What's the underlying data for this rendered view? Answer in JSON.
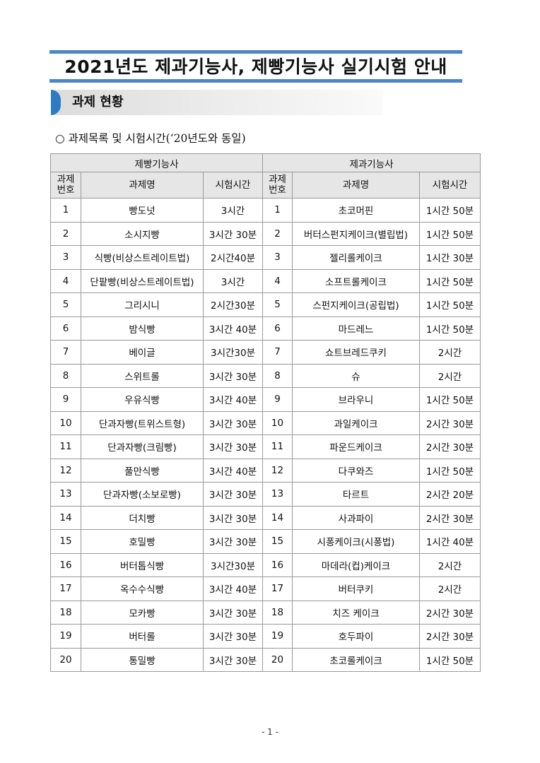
{
  "title": "2021년도 제과기능사, 제빵기능사 실기시험 안내",
  "section_header": "과제 현황",
  "subtitle": "○ 과제목록 및 시험시간(‘20년도와 동일)",
  "table": {
    "groups": [
      "제빵기능사",
      "제과기능사"
    ],
    "columns": [
      "과제\n번호",
      "과제명",
      "시험시간"
    ],
    "bread": [
      [
        "1",
        "빵도넛",
        "3시간"
      ],
      [
        "2",
        "소시지빵",
        "3시간 30분"
      ],
      [
        "3",
        "식빵(비상스트레이트법)",
        "2시간40분"
      ],
      [
        "4",
        "단팥빵(비상스트레이트법)",
        "3시간"
      ],
      [
        "5",
        "그리시니",
        "2시간30분"
      ],
      [
        "6",
        "밤식빵",
        "3시간 40분"
      ],
      [
        "7",
        "베이글",
        "3시간30분"
      ],
      [
        "8",
        "스위트롤",
        "3시간 30분"
      ],
      [
        "9",
        "우유식빵",
        "3시간 40분"
      ],
      [
        "10",
        "단과자빵(트위스트형)",
        "3시간 30분"
      ],
      [
        "11",
        "단과자빵(크림빵)",
        "3시간 30분"
      ],
      [
        "12",
        "풀만식빵",
        "3시간 40분"
      ],
      [
        "13",
        "단과자빵(소보로빵)",
        "3시간 30분"
      ],
      [
        "14",
        "더치빵",
        "3시간 30분"
      ],
      [
        "15",
        "호밀빵",
        "3시간 30분"
      ],
      [
        "16",
        "버터톱식빵",
        "3시간30분"
      ],
      [
        "17",
        "옥수수식빵",
        "3시간 40분"
      ],
      [
        "18",
        "모카빵",
        "3시간 30분"
      ],
      [
        "19",
        "버터롤",
        "3시간 30분"
      ],
      [
        "20",
        "통밀빵",
        "3시간 30분"
      ]
    ],
    "confectionery": [
      [
        "1",
        "초코머핀",
        "1시간 50분"
      ],
      [
        "2",
        "버터스펀지케이크(별립법)",
        "1시간 50분"
      ],
      [
        "3",
        "젤리롤케이크",
        "1시간 30분"
      ],
      [
        "4",
        "소프트롤케이크",
        "1시간 50분"
      ],
      [
        "5",
        "스펀지케이크(공립법)",
        "1시간 50분"
      ],
      [
        "6",
        "마드레느",
        "1시간 50분"
      ],
      [
        "7",
        "쇼트브레드쿠키",
        "2시간"
      ],
      [
        "8",
        "슈",
        "2시간"
      ],
      [
        "9",
        "브라우니",
        "1시간 50분"
      ],
      [
        "10",
        "과일케이크",
        "2시간 30분"
      ],
      [
        "11",
        "파운드케이크",
        "2시간 30분"
      ],
      [
        "12",
        "다쿠와즈",
        "1시간 50분"
      ],
      [
        "13",
        "타르트",
        "2시간 20분"
      ],
      [
        "14",
        "사과파이",
        "2시간 30분"
      ],
      [
        "15",
        "시퐁케이크(시퐁법)",
        "1시간 40분"
      ],
      [
        "16",
        "마데라(컵)케이크",
        "2시간"
      ],
      [
        "17",
        "버터쿠키",
        "2시간"
      ],
      [
        "18",
        "치즈 케이크",
        "2시간 30분"
      ],
      [
        "19",
        "호두파이",
        "2시간 30분"
      ],
      [
        "20",
        "초코롤케이크",
        "1시간 50분"
      ]
    ]
  },
  "page_number": "- 1 -",
  "colors": {
    "accent": "#4a86c8",
    "section_cap": "#2e7bc4",
    "header_bg": "#e6e6e6"
  }
}
